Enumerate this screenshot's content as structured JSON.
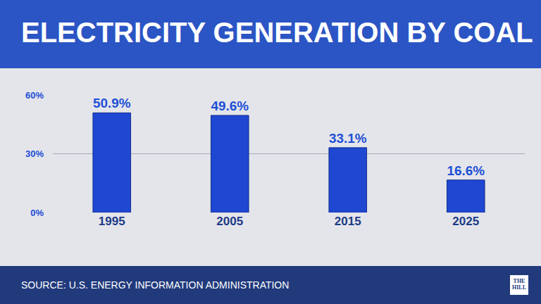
{
  "chart_data": {
    "type": "bar",
    "title": "ELECTRICITY GENERATION BY COAL",
    "categories": [
      "1995",
      "2005",
      "2015",
      "2025"
    ],
    "values": [
      50.9,
      49.6,
      33.1,
      16.6
    ],
    "value_labels": [
      "50.9%",
      "49.6%",
      "33.1%",
      "16.6%"
    ],
    "data_labels": true,
    "color": "#1f47d1",
    "ylim": [
      0,
      60
    ],
    "yticks": [
      {
        "value": 0,
        "label": "0%"
      },
      {
        "value": 30,
        "label": "30%"
      },
      {
        "value": 60,
        "label": "60%"
      }
    ],
    "grid": true,
    "source": "SOURCE: U.S. ENERGY INFORMATION ADMINISTRATION",
    "logo": "THE HILL"
  }
}
